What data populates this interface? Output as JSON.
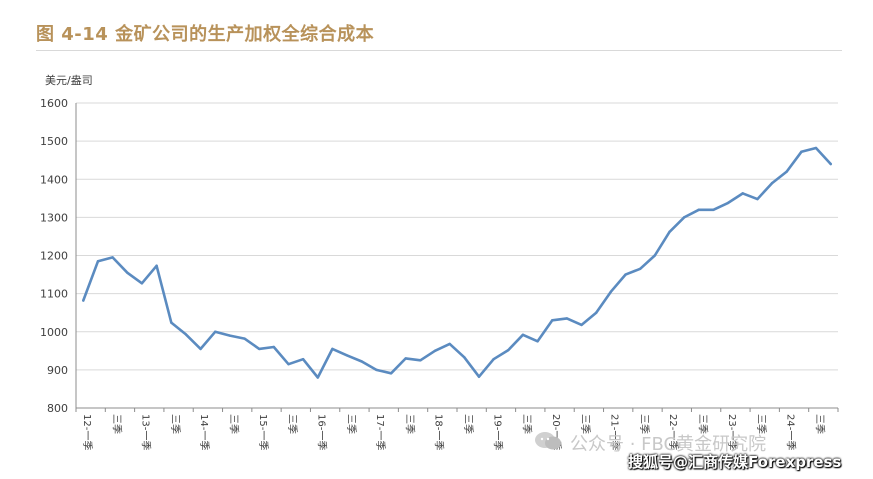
{
  "title": "图 4-14  金矿公司的生产加权全综合成本",
  "watermark_account": "公众号 · FBC黄金研究院",
  "watermark_source": "搜狐号@汇商传媒Forexpress",
  "colors": {
    "title": "#b8925a",
    "line": "#5b8bc0",
    "grid": "#d9d9d9"
  },
  "chart_data": {
    "type": "line",
    "title": "",
    "ylabel": "美元/盎司",
    "ylim": [
      800,
      1600
    ],
    "yticks": [
      800,
      900,
      1000,
      1100,
      1200,
      1300,
      1400,
      1500,
      1600
    ],
    "grid": true,
    "x_tick_labels": [
      "12-一季",
      "三季",
      "13-一季",
      "三季",
      "14-一季",
      "三季",
      "15-一季",
      "三季",
      "16-一季",
      "三季",
      "17-一季",
      "三季",
      "18-一季",
      "三季",
      "19-一季",
      "三季",
      "20-一季",
      "三季",
      "21-一季",
      "三季",
      "22-一季",
      "三季",
      "23-一季",
      "三季",
      "24-一季",
      "三季"
    ],
    "series": [
      {
        "values": [
          1082,
          1185,
          1195,
          1155,
          1127,
          1173,
          1024,
          993,
          955,
          1000,
          990,
          982,
          955,
          960,
          915,
          928,
          880,
          955,
          938,
          922,
          900,
          891,
          930,
          925,
          950,
          968,
          933,
          882,
          928,
          952,
          992,
          975,
          1030,
          1035,
          1018,
          1050,
          1105,
          1150,
          1165,
          1200,
          1262,
          1300,
          1320,
          1320,
          1338,
          1363,
          1348,
          1390,
          1420,
          1472,
          1482,
          1440
        ]
      }
    ]
  }
}
